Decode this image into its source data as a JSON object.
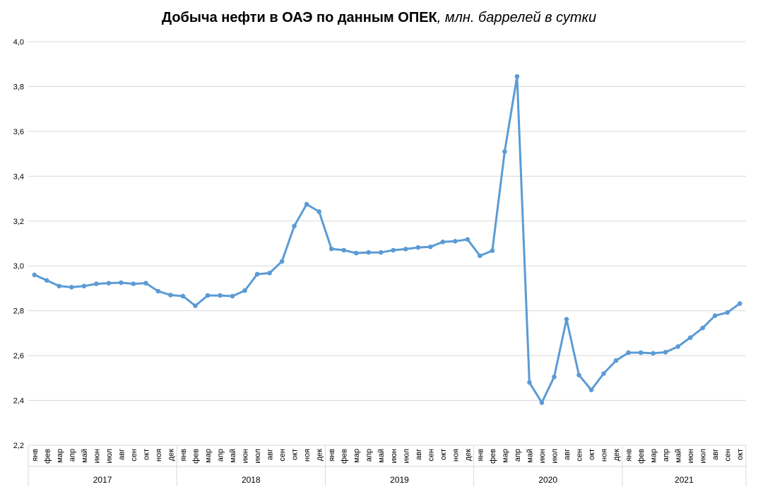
{
  "chart_data": {
    "type": "line",
    "title": "Добыча нефти в ОАЭ по данным ОПЕК",
    "title_unit": ", млн. баррелей в сутки",
    "ylim": [
      2.2,
      4.0
    ],
    "yticks": [
      "2,2",
      "2,4",
      "2,6",
      "2,8",
      "3,0",
      "3,2",
      "3,4",
      "3,6",
      "3,8",
      "4,0"
    ],
    "grid": true,
    "legend": "none",
    "line_color": "#5b9bd5",
    "x": [
      "янв",
      "фев",
      "мар",
      "апр",
      "май",
      "июн",
      "июл",
      "авг",
      "сен",
      "окт",
      "ноя",
      "дек",
      "янв",
      "фев",
      "мар",
      "апр",
      "май",
      "июн",
      "июл",
      "авг",
      "сен",
      "окт",
      "ноя",
      "дек",
      "янв",
      "фев",
      "мар",
      "апр",
      "май",
      "июн",
      "июл",
      "авг",
      "сен",
      "окт",
      "ноя",
      "дек",
      "янв",
      "фев",
      "мар",
      "апр",
      "май",
      "июн",
      "июл",
      "авг",
      "сен",
      "окт",
      "ноя",
      "дек",
      "янв",
      "фев",
      "мар",
      "апр",
      "май",
      "июн",
      "июл",
      "авг",
      "сен",
      "окт"
    ],
    "years": [
      {
        "label": "2017",
        "months": 12
      },
      {
        "label": "2018",
        "months": 12
      },
      {
        "label": "2019",
        "months": 12
      },
      {
        "label": "2020",
        "months": 12
      },
      {
        "label": "2021",
        "months": 10
      }
    ],
    "series": [
      {
        "values": [
          2.96,
          2.935,
          2.91,
          2.905,
          2.91,
          2.92,
          2.923,
          2.925,
          2.92,
          2.923,
          2.887,
          2.87,
          2.865,
          2.822,
          2.868,
          2.868,
          2.865,
          2.89,
          2.963,
          2.968,
          3.02,
          3.178,
          3.275,
          3.242,
          3.076,
          3.07,
          3.057,
          3.06,
          3.06,
          3.07,
          3.075,
          3.082,
          3.085,
          3.107,
          3.11,
          3.118,
          3.045,
          3.068,
          3.51,
          3.845,
          2.48,
          2.39,
          2.505,
          2.762,
          2.513,
          2.447,
          2.52,
          2.578,
          2.613,
          2.613,
          2.61,
          2.615,
          2.64,
          2.68,
          2.723,
          2.778,
          2.792,
          2.832
        ]
      }
    ]
  }
}
